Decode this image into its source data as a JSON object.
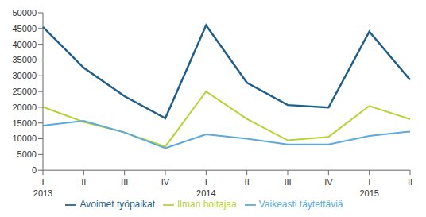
{
  "chart_data": {
    "type": "line",
    "categories": [
      "I\n2013",
      "II",
      "III",
      "IV",
      "I\n2014",
      "II",
      "III",
      "IV",
      "I\n2015",
      "II"
    ],
    "series": [
      {
        "name": "Avoimet työpaikat",
        "color": "#1f5f8b",
        "values": [
          45500,
          32500,
          23500,
          16500,
          46000,
          27800,
          20700,
          19900,
          44000,
          28700
        ]
      },
      {
        "name": "Ilman hoitajaa",
        "color": "#b6d334",
        "values": [
          20100,
          15300,
          12000,
          7500,
          25000,
          16300,
          9500,
          10600,
          20400,
          16200
        ]
      },
      {
        "name": "Vaikeasti täytettäviä",
        "color": "#5aaadf",
        "values": [
          14200,
          15700,
          12000,
          7000,
          11400,
          10000,
          8200,
          8200,
          10900,
          12300
        ]
      }
    ],
    "ylim": [
      0,
      50000
    ],
    "yticks": [
      0,
      5000,
      10000,
      15000,
      20000,
      25000,
      30000,
      35000,
      40000,
      45000,
      50000
    ],
    "grid": false,
    "legend": "bottom"
  }
}
